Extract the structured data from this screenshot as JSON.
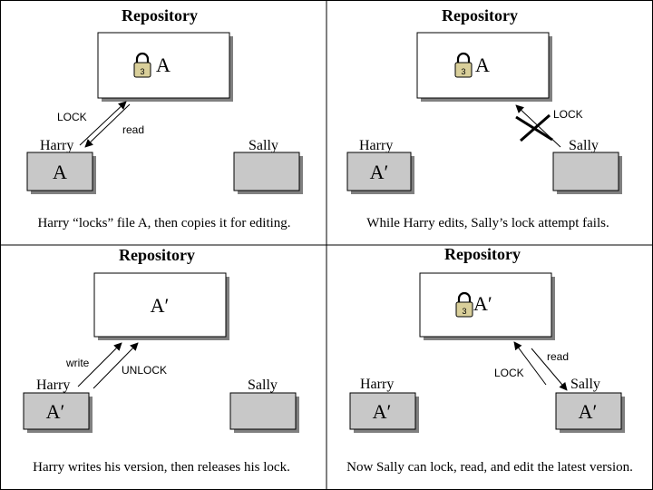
{
  "panels": [
    {
      "title": "Repository",
      "repo_file": "A",
      "repo_locked": true,
      "harry": "Harry",
      "sally": "Sally",
      "harry_file": "A",
      "sally_file": "",
      "arrow_labels": [
        "LOCK",
        "read"
      ],
      "caption": "Harry “locks” file A, then copies it for editing."
    },
    {
      "title": "Repository",
      "repo_file": "A",
      "repo_locked": true,
      "harry": "Harry",
      "sally": "Sally",
      "harry_file": "A′",
      "sally_file": "",
      "arrow_labels": [
        "LOCK"
      ],
      "caption": "While Harry edits, Sally’s lock attempt fails."
    },
    {
      "title": "Repository",
      "repo_file": "A′",
      "repo_locked": false,
      "harry": "Harry",
      "sally": "Sally",
      "harry_file": "A′",
      "sally_file": "",
      "arrow_labels": [
        "write",
        "UNLOCK"
      ],
      "caption": "Harry writes his version, then releases his lock."
    },
    {
      "title": "Repository",
      "repo_file": "A′",
      "repo_locked": true,
      "harry": "Harry",
      "sally": "Sally",
      "harry_file": "A′",
      "sally_file": "A′",
      "arrow_labels": [
        "read",
        "LOCK"
      ],
      "caption": "Now Sally can lock, read, and edit the latest version."
    }
  ],
  "lock_icon_label": "3",
  "colors": {
    "box_fill": "#c8c8c8",
    "repo_fill": "#ffffff",
    "lock_body": "#d9cf9a",
    "shadow": "#808080"
  }
}
